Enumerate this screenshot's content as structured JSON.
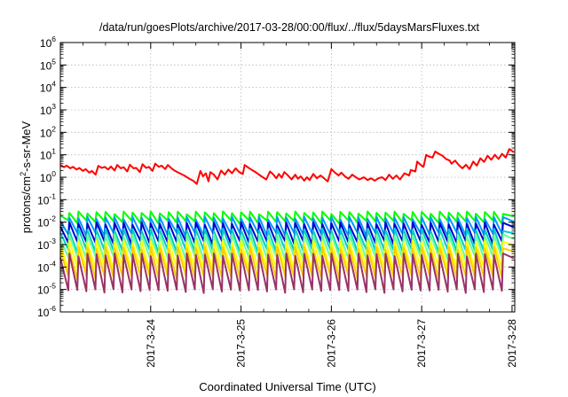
{
  "chart_data": {
    "type": "line",
    "title": "/data/run/goesPlots/archive/2017-03-28/00:00/flux/../flux/5daysMarsFluxes.txt",
    "xlabel": "Coordinated Universal Time (UTC)",
    "ylabel": {
      "base": "protons/cm",
      "sup": "2",
      "rest": "-s-sr-MeV"
    },
    "yscale": "log",
    "ylim_exponents": [
      -6,
      6
    ],
    "y_ticks": [
      {
        "base": "10",
        "exp": "-6"
      },
      {
        "base": "10",
        "exp": "-5"
      },
      {
        "base": "10",
        "exp": "-4"
      },
      {
        "base": "10",
        "exp": "-3"
      },
      {
        "base": "10",
        "exp": "-2"
      },
      {
        "base": "10",
        "exp": "-1"
      },
      {
        "base": "10",
        "exp": "0"
      },
      {
        "base": "10",
        "exp": "1"
      },
      {
        "base": "10",
        "exp": "2"
      },
      {
        "base": "10",
        "exp": "3"
      },
      {
        "base": "10",
        "exp": "4"
      },
      {
        "base": "10",
        "exp": "5"
      },
      {
        "base": "10",
        "exp": "6"
      }
    ],
    "x_ticks": [
      "2017-3-24",
      "2017-3-25",
      "2017-3-26",
      "2017-3-27",
      "2017-3-28"
    ],
    "xlim_days": [
      23.0,
      28.03
    ],
    "grid": true,
    "legend": "none",
    "series": [
      {
        "color": "#ff0000",
        "points": [
          [
            23.0,
            3.5
          ],
          [
            23.04,
            2.8
          ],
          [
            23.07,
            3.3
          ],
          [
            23.11,
            2.5
          ],
          [
            23.14,
            2.9
          ],
          [
            23.18,
            2.2
          ],
          [
            23.21,
            2.6
          ],
          [
            23.25,
            1.9
          ],
          [
            23.28,
            2.3
          ],
          [
            23.32,
            1.6
          ],
          [
            23.35,
            1.9
          ],
          [
            23.39,
            1.3
          ],
          [
            23.42,
            3.2
          ],
          [
            23.46,
            2.6
          ],
          [
            23.49,
            2.9
          ],
          [
            23.53,
            2.2
          ],
          [
            23.56,
            3.0
          ],
          [
            23.6,
            2.0
          ],
          [
            23.63,
            3.5
          ],
          [
            23.67,
            2.5
          ],
          [
            23.7,
            2.8
          ],
          [
            23.74,
            1.8
          ],
          [
            23.77,
            3.6
          ],
          [
            23.81,
            2.5
          ],
          [
            23.84,
            2.6
          ],
          [
            23.88,
            1.7
          ],
          [
            23.91,
            3.8
          ],
          [
            23.95,
            2.6
          ],
          [
            23.98,
            2.9
          ],
          [
            24.02,
            1.9
          ],
          [
            24.05,
            4.0
          ],
          [
            24.09,
            2.9
          ],
          [
            24.12,
            3.3
          ],
          [
            24.16,
            2.3
          ],
          [
            24.19,
            3.5
          ],
          [
            24.23,
            2.5
          ],
          [
            24.27,
            1.9
          ],
          [
            24.32,
            1.5
          ],
          [
            24.37,
            1.2
          ],
          [
            24.42,
            0.9
          ],
          [
            24.47,
            0.7
          ],
          [
            24.51,
            0.5
          ],
          [
            24.55,
            1.9
          ],
          [
            24.58,
            1.1
          ],
          [
            24.61,
            1.5
          ],
          [
            24.64,
            0.65
          ],
          [
            24.66,
            1.7
          ],
          [
            24.7,
            1.3
          ],
          [
            24.74,
            0.8
          ],
          [
            24.78,
            2.0
          ],
          [
            24.82,
            1.3
          ],
          [
            24.86,
            2.2
          ],
          [
            24.9,
            1.5
          ],
          [
            24.94,
            2.5
          ],
          [
            24.98,
            1.7
          ],
          [
            25.02,
            1.4
          ],
          [
            25.04,
            3.5
          ],
          [
            25.08,
            2.7
          ],
          [
            25.12,
            2.1
          ],
          [
            25.16,
            1.7
          ],
          [
            25.2,
            1.3
          ],
          [
            25.24,
            1.0
          ],
          [
            25.28,
            0.8
          ],
          [
            25.32,
            1.8
          ],
          [
            25.36,
            1.3
          ],
          [
            25.39,
            0.9
          ],
          [
            25.42,
            1.4
          ],
          [
            25.45,
            0.95
          ],
          [
            25.48,
            1.7
          ],
          [
            25.52,
            1.2
          ],
          [
            25.56,
            0.8
          ],
          [
            25.6,
            1.3
          ],
          [
            25.63,
            0.85
          ],
          [
            25.66,
            1.1
          ],
          [
            25.7,
            0.7
          ],
          [
            25.73,
            1.0
          ],
          [
            25.76,
            0.75
          ],
          [
            25.8,
            1.4
          ],
          [
            25.84,
            0.9
          ],
          [
            25.88,
            1.2
          ],
          [
            25.92,
            0.9
          ],
          [
            25.96,
            0.65
          ],
          [
            26.0,
            2.3
          ],
          [
            26.04,
            1.6
          ],
          [
            26.08,
            1.2
          ],
          [
            26.11,
            1.6
          ],
          [
            26.15,
            1.1
          ],
          [
            26.19,
            0.85
          ],
          [
            26.23,
            1.3
          ],
          [
            26.27,
            1.0
          ],
          [
            26.31,
            0.8
          ],
          [
            26.36,
            1.0
          ],
          [
            26.4,
            0.75
          ],
          [
            26.44,
            0.9
          ],
          [
            26.48,
            0.7
          ],
          [
            26.52,
            0.9
          ],
          [
            26.56,
            1.0
          ],
          [
            26.6,
            0.75
          ],
          [
            26.64,
            1.3
          ],
          [
            26.68,
            0.85
          ],
          [
            26.72,
            1.2
          ],
          [
            26.76,
            0.8
          ],
          [
            26.81,
            1.5
          ],
          [
            26.86,
            1.2
          ],
          [
            26.88,
            2.1
          ],
          [
            26.93,
            1.8
          ],
          [
            26.95,
            5.0
          ],
          [
            26.99,
            3.5
          ],
          [
            27.02,
            2.9
          ],
          [
            27.05,
            10.0
          ],
          [
            27.08,
            8.5
          ],
          [
            27.12,
            7.5
          ],
          [
            27.15,
            14.0
          ],
          [
            27.19,
            11.0
          ],
          [
            27.23,
            9.0
          ],
          [
            27.27,
            6.5
          ],
          [
            27.31,
            5.5
          ],
          [
            27.33,
            4.0
          ],
          [
            27.37,
            5.5
          ],
          [
            27.41,
            3.5
          ],
          [
            27.45,
            2.5
          ],
          [
            27.49,
            3.6
          ],
          [
            27.53,
            2.3
          ],
          [
            27.57,
            5.0
          ],
          [
            27.61,
            3.3
          ],
          [
            27.65,
            7.0
          ],
          [
            27.69,
            4.8
          ],
          [
            27.73,
            9.0
          ],
          [
            27.77,
            6.0
          ],
          [
            27.81,
            10.0
          ],
          [
            27.85,
            6.5
          ],
          [
            27.89,
            11.0
          ],
          [
            27.93,
            7.5
          ],
          [
            27.97,
            18.0
          ],
          [
            28.02,
            13.0
          ]
        ]
      },
      {
        "color": "#00ff00",
        "upper": 0.026,
        "lower": 0.01
      },
      {
        "color": "#0099ff",
        "upper": 0.015,
        "lower": 0.0028
      },
      {
        "color": "#0000cc",
        "upper": 0.0085,
        "lower": 0.0012
      },
      {
        "color": "#00cccc",
        "upper": 0.0045,
        "lower": 0.0005
      },
      {
        "color": "#66ff99",
        "upper": 0.0025,
        "lower": 0.00025
      },
      {
        "color": "#ffff00",
        "upper": 0.0013,
        "lower": 8e-05
      },
      {
        "color": "#ffcc00",
        "upper": 0.0007,
        "lower": 3.5e-05
      },
      {
        "color": "#993366",
        "upper": 0.00035,
        "lower": 8.5e-06
      }
    ]
  }
}
